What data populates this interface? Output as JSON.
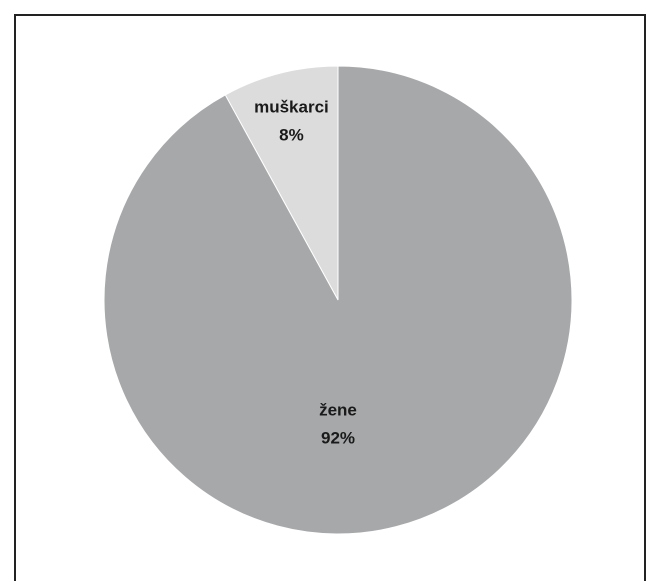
{
  "chart_data": {
    "type": "pie",
    "title": "",
    "slices": [
      {
        "label": "muškarci",
        "value": 8,
        "value_label": "8%",
        "color": "#dcdcdd"
      },
      {
        "label": "žene",
        "value": 92,
        "value_label": "92%",
        "color": "#a7a8aa"
      }
    ],
    "legend": "none",
    "start_angle": "12 o'clock",
    "direction": "counter-clockwise"
  }
}
